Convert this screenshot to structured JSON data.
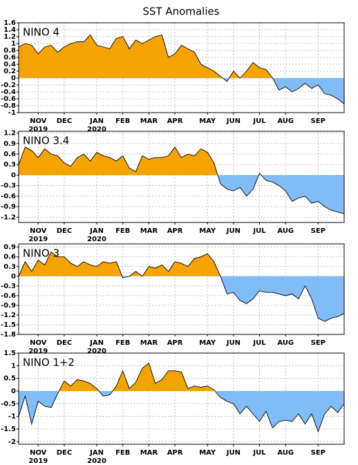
{
  "title": "SST Anomalies",
  "chart_data": [
    {
      "type": "area",
      "title": "NINO 4",
      "positive_color": "#f5a300",
      "negative_color": "#80bcf5",
      "grid": true,
      "categories": [
        null,
        null,
        null,
        "NOV",
        null,
        null,
        null,
        "DEC",
        null,
        null,
        null,
        null,
        "JAN",
        null,
        null,
        null,
        "FEB",
        null,
        null,
        null,
        "MAR",
        null,
        null,
        null,
        "APR",
        null,
        null,
        null,
        null,
        "MAY",
        null,
        null,
        null,
        "JUN",
        null,
        null,
        null,
        "JUL",
        null,
        null,
        null,
        "AUG",
        null,
        null,
        null,
        null,
        "SEP",
        null,
        null,
        null,
        null
      ],
      "years": [
        null,
        null,
        null,
        "2019",
        null,
        null,
        null,
        null,
        null,
        null,
        null,
        null,
        "2020",
        null,
        null,
        null,
        null,
        null,
        null,
        null,
        null,
        null,
        null,
        null,
        null,
        null,
        null,
        null,
        null,
        null,
        null,
        null,
        null,
        null,
        null,
        null,
        null,
        null,
        null,
        null,
        null,
        null,
        null,
        null,
        null,
        null,
        null,
        null,
        null,
        null,
        null
      ],
      "values": [
        0.9,
        1.0,
        0.95,
        0.7,
        0.9,
        0.95,
        0.75,
        0.9,
        1.0,
        1.05,
        1.05,
        1.25,
        0.95,
        0.9,
        0.85,
        1.15,
        1.2,
        0.85,
        1.1,
        1.0,
        1.1,
        1.2,
        1.25,
        0.6,
        0.7,
        0.95,
        0.85,
        0.75,
        0.4,
        0.3,
        0.2,
        0.05,
        -0.1,
        0.2,
        0.0,
        0.2,
        0.45,
        0.3,
        0.25,
        0.0,
        -0.35,
        -0.25,
        -0.4,
        -0.3,
        -0.15,
        -0.3,
        -0.2,
        -0.45,
        -0.5,
        -0.6,
        -0.75
      ],
      "ylim": [
        -1,
        1.6
      ],
      "yticks": [
        -1,
        -0.8,
        -0.6,
        -0.4,
        -0.2,
        0,
        0.2,
        0.4,
        0.6,
        0.8,
        1,
        1.2,
        1.4,
        1.6
      ]
    },
    {
      "type": "area",
      "title": "NINO 3.4",
      "positive_color": "#f5a300",
      "negative_color": "#80bcf5",
      "grid": true,
      "categories": [
        null,
        null,
        null,
        "NOV",
        null,
        null,
        null,
        "DEC",
        null,
        null,
        null,
        null,
        "JAN",
        null,
        null,
        null,
        "FEB",
        null,
        null,
        null,
        "MAR",
        null,
        null,
        null,
        "APR",
        null,
        null,
        null,
        null,
        "MAY",
        null,
        null,
        null,
        "JUN",
        null,
        null,
        null,
        "JUL",
        null,
        null,
        null,
        "AUG",
        null,
        null,
        null,
        null,
        "SEP",
        null,
        null,
        null,
        null
      ],
      "years": [
        null,
        null,
        null,
        "2019",
        null,
        null,
        null,
        null,
        null,
        null,
        null,
        null,
        "2020",
        null,
        null,
        null,
        null,
        null,
        null,
        null,
        null,
        null,
        null,
        null,
        null,
        null,
        null,
        null,
        null,
        null,
        null,
        null,
        null,
        null,
        null,
        null,
        null,
        null,
        null,
        null,
        null,
        null,
        null,
        null,
        null,
        null,
        null,
        null,
        null,
        null,
        null
      ],
      "values": [
        0.3,
        0.8,
        0.7,
        0.5,
        0.75,
        0.6,
        0.55,
        0.35,
        0.25,
        0.5,
        0.6,
        0.4,
        0.65,
        0.55,
        0.5,
        0.4,
        0.55,
        0.2,
        0.1,
        0.55,
        0.45,
        0.5,
        0.5,
        0.55,
        0.8,
        0.5,
        0.6,
        0.55,
        0.75,
        0.65,
        0.35,
        -0.25,
        -0.4,
        -0.45,
        -0.35,
        -0.6,
        -0.4,
        0.05,
        -0.15,
        -0.2,
        -0.3,
        -0.45,
        -0.75,
        -0.65,
        -0.6,
        -0.8,
        -0.75,
        -0.9,
        -1.0,
        -1.05,
        -1.1
      ],
      "ylim": [
        -1.35,
        1.25
      ],
      "yticks": [
        -1.2,
        -0.9,
        -0.6,
        -0.3,
        0,
        0.3,
        0.6,
        0.9,
        1.2
      ]
    },
    {
      "type": "area",
      "title": "NINO 3",
      "positive_color": "#f5a300",
      "negative_color": "#80bcf5",
      "grid": true,
      "categories": [
        null,
        null,
        null,
        "NOV",
        null,
        null,
        null,
        "DEC",
        null,
        null,
        null,
        null,
        "JAN",
        null,
        null,
        null,
        "FEB",
        null,
        null,
        null,
        "MAR",
        null,
        null,
        null,
        "APR",
        null,
        null,
        null,
        null,
        "MAY",
        null,
        null,
        null,
        "JUN",
        null,
        null,
        null,
        "JUL",
        null,
        null,
        null,
        "AUG",
        null,
        null,
        null,
        null,
        "SEP",
        null,
        null,
        null,
        null
      ],
      "years": [
        null,
        null,
        null,
        "2019",
        null,
        null,
        null,
        null,
        null,
        null,
        null,
        null,
        "2020",
        null,
        null,
        null,
        null,
        null,
        null,
        null,
        null,
        null,
        null,
        null,
        null,
        null,
        null,
        null,
        null,
        null,
        null,
        null,
        null,
        null,
        null,
        null,
        null,
        null,
        null,
        null,
        null,
        null,
        null,
        null,
        null,
        null,
        null,
        null,
        null,
        null,
        null
      ],
      "values": [
        0.0,
        0.45,
        0.15,
        0.5,
        0.35,
        0.75,
        0.6,
        0.6,
        0.4,
        0.3,
        0.45,
        0.35,
        0.3,
        0.45,
        0.4,
        0.45,
        -0.05,
        0.0,
        0.15,
        0.0,
        0.3,
        0.25,
        0.35,
        0.15,
        0.45,
        0.4,
        0.3,
        0.55,
        0.6,
        0.7,
        0.45,
        0.0,
        -0.55,
        -0.5,
        -0.75,
        -0.85,
        -0.7,
        -0.45,
        -0.5,
        -0.5,
        -0.55,
        -0.6,
        -0.55,
        -0.7,
        -0.3,
        -0.7,
        -1.3,
        -1.4,
        -1.3,
        -1.25,
        -1.15
      ],
      "ylim": [
        -1.8,
        1.0
      ],
      "yticks": [
        -1.8,
        -1.5,
        -1.2,
        -0.9,
        -0.6,
        -0.3,
        0,
        0.3,
        0.6,
        0.9
      ]
    },
    {
      "type": "area",
      "title": "NINO 1+2",
      "positive_color": "#f5a300",
      "negative_color": "#80bcf5",
      "grid": true,
      "categories": [
        null,
        null,
        null,
        "NOV",
        null,
        null,
        null,
        "DEC",
        null,
        null,
        null,
        null,
        "JAN",
        null,
        null,
        null,
        "FEB",
        null,
        null,
        null,
        "MAR",
        null,
        null,
        null,
        "APR",
        null,
        null,
        null,
        null,
        "MAY",
        null,
        null,
        null,
        "JUN",
        null,
        null,
        null,
        "JUL",
        null,
        null,
        null,
        "AUG",
        null,
        null,
        null,
        null,
        "SEP",
        null,
        null,
        null,
        null
      ],
      "years": [
        null,
        null,
        null,
        "2019",
        null,
        null,
        null,
        null,
        null,
        null,
        null,
        null,
        "2020",
        null,
        null,
        null,
        null,
        null,
        null,
        null,
        null,
        null,
        null,
        null,
        null,
        null,
        null,
        null,
        null,
        null,
        null,
        null,
        null,
        null,
        null,
        null,
        null,
        null,
        null,
        null,
        null,
        null,
        null,
        null,
        null,
        null,
        null,
        null,
        null,
        null,
        null
      ],
      "values": [
        -1.0,
        -0.2,
        -1.3,
        -0.4,
        -0.6,
        -0.65,
        -0.1,
        0.4,
        0.2,
        0.45,
        0.4,
        0.3,
        0.1,
        -0.2,
        -0.15,
        0.2,
        0.8,
        0.1,
        0.35,
        0.9,
        1.1,
        0.3,
        0.45,
        0.8,
        0.8,
        0.75,
        0.1,
        0.2,
        0.15,
        0.2,
        0.05,
        -0.25,
        -0.4,
        -0.5,
        -0.9,
        -0.6,
        -0.9,
        -1.2,
        -0.8,
        -1.45,
        -1.2,
        -1.15,
        -1.2,
        -0.9,
        -1.3,
        -0.9,
        -1.6,
        -0.9,
        -0.6,
        -0.85,
        -0.5
      ],
      "ylim": [
        -2.1,
        1.5
      ],
      "yticks": [
        -2,
        -1.5,
        -1,
        -0.5,
        0,
        0.5,
        1,
        1.5
      ]
    }
  ]
}
